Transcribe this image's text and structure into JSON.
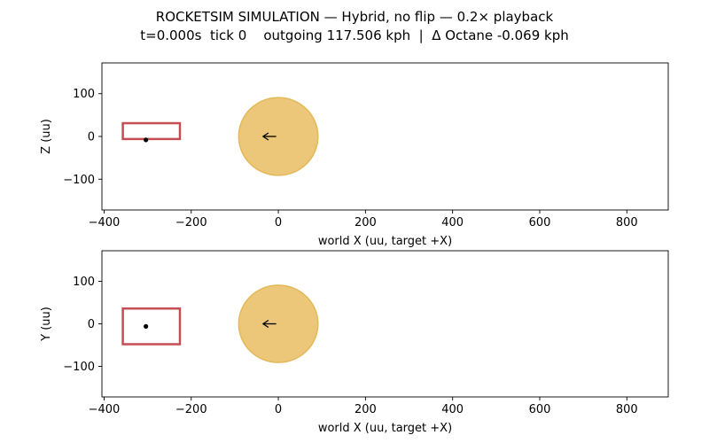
{
  "title": {
    "line1": "ROCKETSIM SIMULATION — Hybrid, no flip — 0.2× playback",
    "line2": "t=0.000s  tick 0    outgoing 117.506 kph  |  Δ Octane -0.069 kph"
  },
  "colors": {
    "car_box": "#c44e52",
    "ball_fill": "#ecc679",
    "ball_edge": "#e3b95a",
    "marker": "#000000"
  },
  "chart_data": [
    {
      "type": "scatter",
      "panel": "top",
      "xlabel": "world X (uu, target +X)",
      "ylabel": "Z (uu)",
      "xlim": [
        -405,
        895
      ],
      "ylim": [
        -172,
        172
      ],
      "xticks": [
        -400,
        -200,
        0,
        200,
        400,
        600,
        800
      ],
      "yticks": [
        -100,
        0,
        100
      ],
      "xtick_labels": [
        "−400",
        "−200",
        "0",
        "200",
        "400",
        "600",
        "800"
      ],
      "ytick_labels": [
        "−100",
        "0",
        "100"
      ],
      "car_box": {
        "x_min": -357,
        "x_max": -226,
        "y_min": -6,
        "y_max": 31
      },
      "car_point": {
        "x": -304,
        "y": -8
      },
      "ball": {
        "x": 0,
        "y": 0,
        "radius": 91
      },
      "velocity_arrow": {
        "x_from": -5,
        "x_to": -35,
        "y": 0
      }
    },
    {
      "type": "scatter",
      "panel": "bottom",
      "xlabel": "world X (uu, target +X)",
      "ylabel": "Y (uu)",
      "xlim": [
        -405,
        895
      ],
      "ylim": [
        -172,
        172
      ],
      "xticks": [
        -400,
        -200,
        0,
        200,
        400,
        600,
        800
      ],
      "yticks": [
        -100,
        0,
        100
      ],
      "xtick_labels": [
        "−400",
        "−200",
        "0",
        "200",
        "400",
        "600",
        "800"
      ],
      "ytick_labels": [
        "−100",
        "0",
        "100"
      ],
      "car_box": {
        "x_min": -357,
        "x_max": -226,
        "y_min": -48,
        "y_max": 36
      },
      "car_point": {
        "x": -304,
        "y": -6
      },
      "ball": {
        "x": 0,
        "y": 0,
        "radius": 91
      },
      "velocity_arrow": {
        "x_from": -5,
        "x_to": -35,
        "y": 0
      }
    }
  ]
}
